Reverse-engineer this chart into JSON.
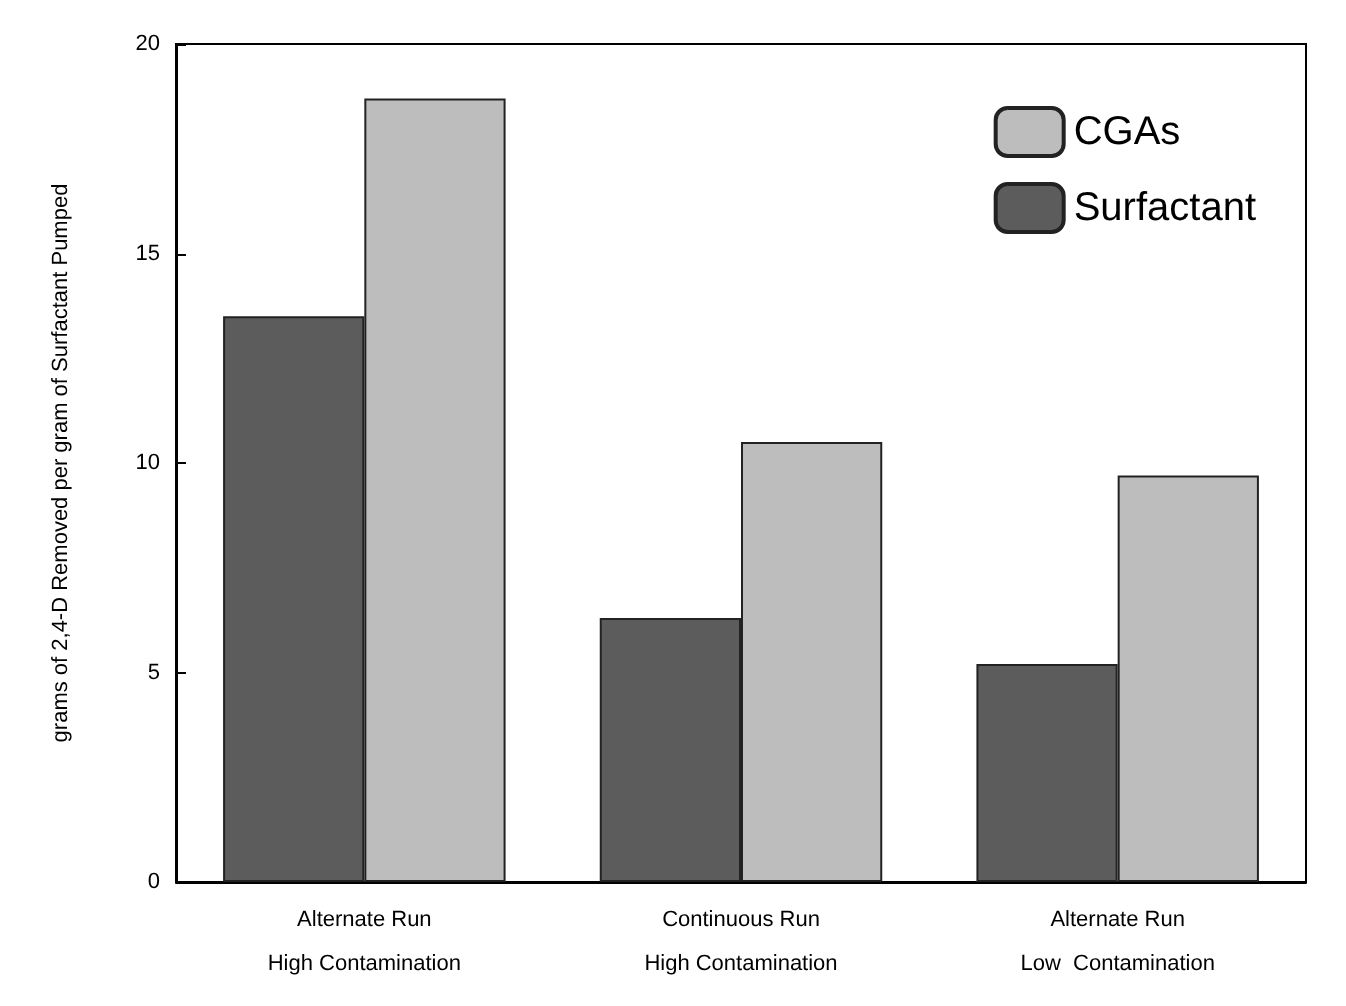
{
  "chart_data": {
    "type": "bar",
    "ylabel": "grams of 2,4-D Removed per gram of Surfactant Pumped",
    "categories": [
      "Alternate Run\nHigh Contamination",
      "Continuous Run\nHigh Contamination",
      "Alternate Run\nLow  Contamination"
    ],
    "series": [
      {
        "name": "Surfactant",
        "color": "#5c5c5c",
        "values": [
          13.5,
          6.3,
          5.2
        ]
      },
      {
        "name": "CGAs",
        "color": "#bdbdbd",
        "values": [
          18.7,
          10.5,
          9.7
        ]
      }
    ],
    "ylim": [
      0,
      20
    ],
    "yticks": [
      0,
      5,
      10,
      15,
      20
    ],
    "grid": false,
    "legend": "top right"
  }
}
